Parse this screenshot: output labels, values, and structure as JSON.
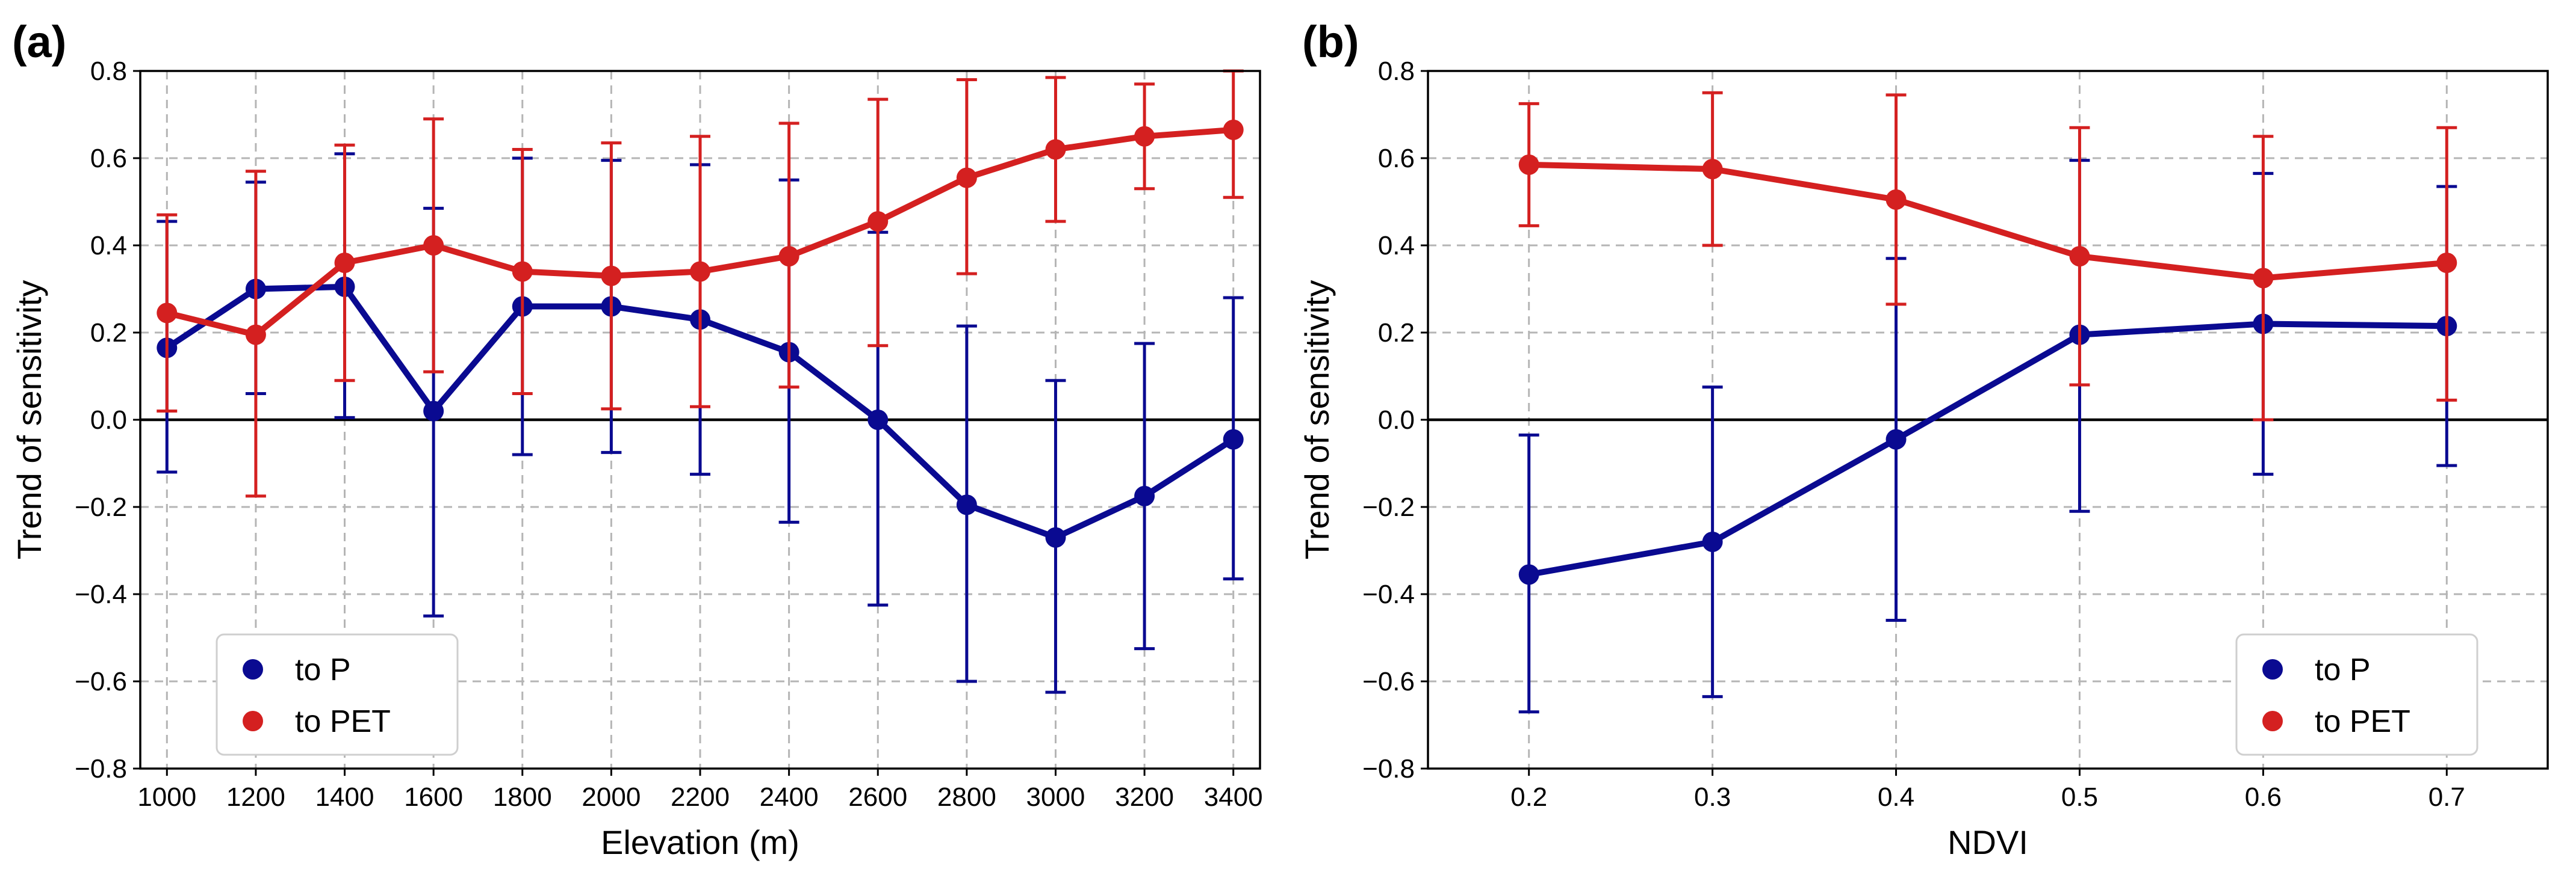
{
  "chart_data": [
    {
      "type": "line",
      "panel_label": "(a)",
      "xlabel": "Elevation (m)",
      "ylabel": "Trend of sensitivity",
      "categories": [
        "1000",
        "1200",
        "1400",
        "1600",
        "1800",
        "2000",
        "2200",
        "2400",
        "2600",
        "2800",
        "3000",
        "3200",
        "3400"
      ],
      "ylim": [
        -0.8,
        0.8
      ],
      "yticks": [
        "−0.8",
        "−0.6",
        "−0.4",
        "−0.2",
        "0.0",
        "0.2",
        "0.4",
        "0.6",
        "0.8"
      ],
      "grid": true,
      "zero_line": true,
      "legend_position": "lower-left",
      "series": [
        {
          "name": "to  P",
          "color": "#0a0a91",
          "values": [
            0.165,
            0.3,
            0.305,
            0.02,
            0.26,
            0.26,
            0.23,
            0.155,
            0.0,
            -0.195,
            -0.27,
            -0.175,
            -0.045
          ],
          "err_low": [
            -0.12,
            0.06,
            0.005,
            -0.45,
            -0.08,
            -0.075,
            -0.125,
            -0.235,
            -0.425,
            -0.6,
            -0.625,
            -0.525,
            -0.365
          ],
          "err_high": [
            0.455,
            0.545,
            0.61,
            0.485,
            0.6,
            0.595,
            0.585,
            0.55,
            0.43,
            0.215,
            0.09,
            0.175,
            0.28
          ]
        },
        {
          "name": "to  PET",
          "color": "#d42020",
          "values": [
            0.245,
            0.195,
            0.36,
            0.4,
            0.34,
            0.33,
            0.34,
            0.375,
            0.455,
            0.555,
            0.62,
            0.65,
            0.665
          ],
          "err_low": [
            0.02,
            -0.175,
            0.09,
            0.11,
            0.06,
            0.025,
            0.03,
            0.075,
            0.17,
            0.335,
            0.455,
            0.53,
            0.51
          ],
          "err_high": [
            0.47,
            0.57,
            0.63,
            0.69,
            0.62,
            0.635,
            0.65,
            0.68,
            0.735,
            0.78,
            0.785,
            0.77,
            0.8
          ]
        }
      ]
    },
    {
      "type": "line",
      "panel_label": "(b)",
      "xlabel": "NDVI",
      "ylabel": "Trend of sensitivity",
      "categories": [
        "0.2",
        "0.3",
        "0.4",
        "0.5",
        "0.6",
        "0.7"
      ],
      "xlim_padding": 0.55,
      "ylim": [
        -0.8,
        0.8
      ],
      "yticks": [
        "−0.8",
        "−0.6",
        "−0.4",
        "−0.2",
        "0.0",
        "0.2",
        "0.4",
        "0.6",
        "0.8"
      ],
      "grid": true,
      "zero_line": true,
      "legend_position": "lower-right",
      "series": [
        {
          "name": "to  P",
          "color": "#0a0a91",
          "values": [
            -0.355,
            -0.28,
            -0.045,
            0.195,
            0.22,
            0.215
          ],
          "err_low": [
            -0.67,
            -0.635,
            -0.46,
            -0.21,
            -0.125,
            -0.105
          ],
          "err_high": [
            -0.035,
            0.075,
            0.37,
            0.595,
            0.565,
            0.535
          ]
        },
        {
          "name": "to  PET",
          "color": "#d42020",
          "values": [
            0.585,
            0.575,
            0.505,
            0.375,
            0.325,
            0.36
          ],
          "err_low": [
            0.445,
            0.4,
            0.265,
            0.08,
            0.0,
            0.045
          ],
          "err_high": [
            0.725,
            0.75,
            0.745,
            0.67,
            0.65,
            0.67
          ]
        }
      ]
    }
  ]
}
